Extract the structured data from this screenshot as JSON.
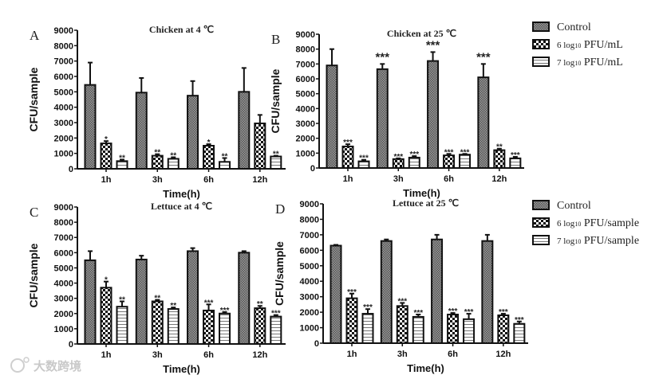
{
  "chart_data": [
    {
      "type": "bar",
      "panel_letter": "A",
      "title": "Chicken at 4 ℃",
      "xlabel": "Time(h)",
      "ylabel": "CFU/sample",
      "ylim": [
        0,
        9000
      ],
      "yticks": [
        "0",
        "1000",
        "2000",
        "3000",
        "4000",
        "5000",
        "6000",
        "7000",
        "8000",
        "9000"
      ],
      "categories": [
        "1h",
        "3h",
        "6h",
        "12h"
      ],
      "series": [
        {
          "name": "Control",
          "values": [
            5450,
            4950,
            4750,
            5000
          ],
          "error_top": [
            6900,
            5900,
            5700,
            6550
          ],
          "sig": [
            "",
            "",
            "",
            ""
          ]
        },
        {
          "name": "6 log10 PFU/mL",
          "values": [
            1650,
            850,
            1500,
            2950
          ],
          "error_top": [
            1800,
            950,
            1600,
            3500
          ],
          "sig": [
            "*",
            "**",
            "*",
            ""
          ]
        },
        {
          "name": "7 log10 PFU/mL",
          "values": [
            500,
            650,
            450,
            800
          ],
          "error_top": [
            600,
            750,
            700,
            850
          ],
          "sig": [
            "**",
            "**",
            "**",
            "**"
          ]
        }
      ]
    },
    {
      "type": "bar",
      "panel_letter": "B",
      "title": "Chicken at 25 ℃",
      "xlabel": "Time(h)",
      "ylabel": "CFU/sample",
      "ylim": [
        0,
        9000
      ],
      "yticks": [
        "0",
        "1000",
        "2000",
        "3000",
        "4000",
        "5000",
        "6000",
        "7000",
        "8000",
        "9000"
      ],
      "categories": [
        "1h",
        "3h",
        "6h",
        "12h"
      ],
      "series": [
        {
          "name": "Control",
          "values": [
            6900,
            6650,
            7200,
            6100
          ],
          "error_top": [
            8000,
            7000,
            7800,
            7000
          ],
          "sig": [
            "",
            "***",
            "***",
            "***"
          ]
        },
        {
          "name": "6 log10 PFU/mL",
          "values": [
            1450,
            600,
            850,
            1200
          ],
          "error_top": [
            1600,
            650,
            950,
            1300
          ],
          "sig": [
            "***",
            "***",
            "***",
            "**"
          ]
        },
        {
          "name": "7 log10 PFU/mL",
          "values": [
            450,
            700,
            900,
            650
          ],
          "error_top": [
            550,
            800,
            950,
            750
          ],
          "sig": [
            "***",
            "***",
            "***",
            "***"
          ]
        }
      ],
      "legend": {
        "placement": "right",
        "items": [
          {
            "prefix": "Control",
            "sub": "",
            "suffix": ""
          },
          {
            "prefix": "6 log",
            "sub": "10",
            "suffix": " PFU/mL"
          },
          {
            "prefix": "7 log",
            "sub": "10",
            "suffix": " PFU/mL"
          }
        ]
      }
    },
    {
      "type": "bar",
      "panel_letter": "C",
      "title": "Lettuce at 4 ℃",
      "xlabel": "Time(h)",
      "ylabel": "CFU/sample",
      "ylim": [
        0,
        9000
      ],
      "yticks": [
        "0",
        "1000",
        "2000",
        "3000",
        "4000",
        "5000",
        "6000",
        "7000",
        "8000",
        "9000"
      ],
      "categories": [
        "1h",
        "3h",
        "6h",
        "12h"
      ],
      "series": [
        {
          "name": "Control",
          "values": [
            5500,
            5550,
            6100,
            6000
          ],
          "error_top": [
            6100,
            5800,
            6300,
            6100
          ],
          "sig": [
            "",
            "",
            "",
            ""
          ]
        },
        {
          "name": "6 log10 PFU/sample",
          "values": [
            3700,
            2800,
            2200,
            2350
          ],
          "error_top": [
            4100,
            2900,
            2600,
            2500
          ],
          "sig": [
            "*",
            "**",
            "***",
            "**"
          ]
        },
        {
          "name": "7 log10 PFU/sample",
          "values": [
            2450,
            2300,
            2000,
            1800
          ],
          "error_top": [
            2800,
            2400,
            2100,
            1900
          ],
          "sig": [
            "**",
            "**",
            "***",
            "***"
          ]
        }
      ]
    },
    {
      "type": "bar",
      "panel_letter": "D",
      "title": "Lettuce at 25 ℃",
      "xlabel": "Time(h)",
      "ylabel": "CFU/sample",
      "ylim": [
        0,
        9000
      ],
      "yticks": [
        "0",
        "1000",
        "2000",
        "3000",
        "4000",
        "5000",
        "6000",
        "7000",
        "8000",
        "9000"
      ],
      "categories": [
        "1h",
        "3h",
        "6h",
        "12h"
      ],
      "series": [
        {
          "name": "Control",
          "values": [
            6300,
            6600,
            6700,
            6600
          ],
          "error_top": [
            6350,
            6700,
            7000,
            7000
          ],
          "sig": [
            "",
            "",
            "",
            ""
          ]
        },
        {
          "name": "6 log10 PFU/sample",
          "values": [
            2900,
            2400,
            1850,
            1800
          ],
          "error_top": [
            3200,
            2600,
            1950,
            1900
          ],
          "sig": [
            "***",
            "***",
            "***",
            "***"
          ]
        },
        {
          "name": "7 log10 PFU/sample",
          "values": [
            1900,
            1700,
            1550,
            1250
          ],
          "error_top": [
            2200,
            1850,
            1900,
            1400
          ],
          "sig": [
            "***",
            "***",
            "***",
            "***"
          ]
        }
      ],
      "legend": {
        "placement": "right",
        "items": [
          {
            "prefix": "Control",
            "sub": "",
            "suffix": ""
          },
          {
            "prefix": "6 log",
            "sub": "10",
            "suffix": " PFU/sample"
          },
          {
            "prefix": "7 log",
            "sub": "10",
            "suffix": " PFU/sample"
          }
        ]
      }
    }
  ],
  "watermark": "大数跨境"
}
